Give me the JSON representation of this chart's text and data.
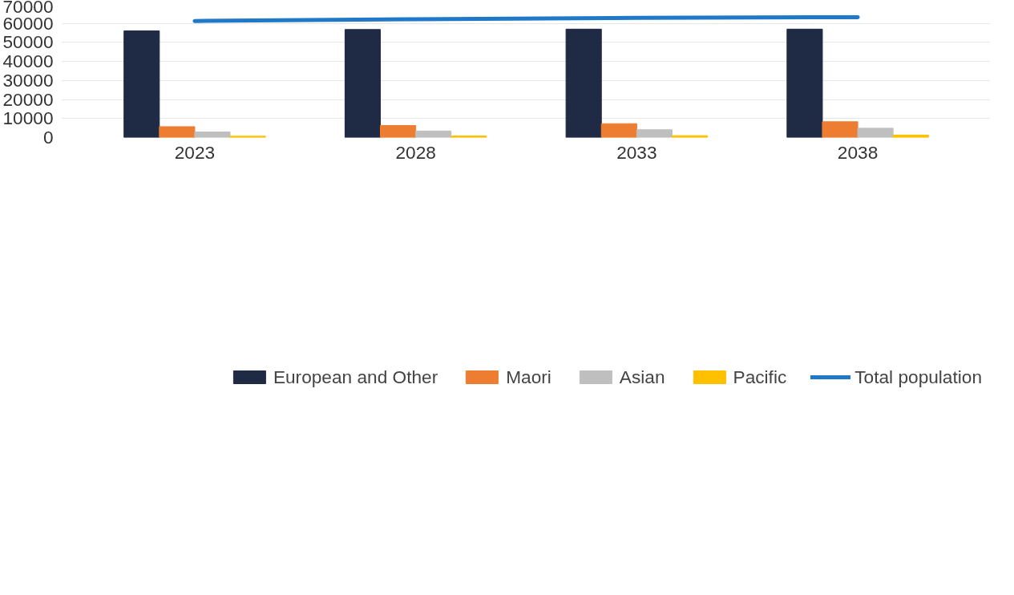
{
  "chart_data": {
    "type": "bar",
    "categories": [
      "2023",
      "2028",
      "2033",
      "2038"
    ],
    "series": [
      {
        "name": "European and Other",
        "color": "#1f2a44",
        "values": [
          56100,
          56800,
          57000,
          57000
        ]
      },
      {
        "name": "Maori",
        "color": "#ed7d31",
        "values": [
          5700,
          6300,
          7300,
          8300
        ]
      },
      {
        "name": "Asian",
        "color": "#bfbfbf",
        "values": [
          2900,
          3400,
          4100,
          4900
        ]
      },
      {
        "name": "Pacific",
        "color": "#ffc000",
        "values": [
          700,
          800,
          1000,
          1300
        ]
      },
      {
        "name": "Total population",
        "type": "line",
        "color": "#1f78c8",
        "values": [
          61300,
          62200,
          62900,
          63300
        ]
      }
    ],
    "ylim": [
      0,
      70000
    ],
    "yticks": [
      0,
      10000,
      20000,
      30000,
      40000,
      50000,
      60000,
      70000
    ],
    "grid": "y",
    "legend": "bottom"
  }
}
